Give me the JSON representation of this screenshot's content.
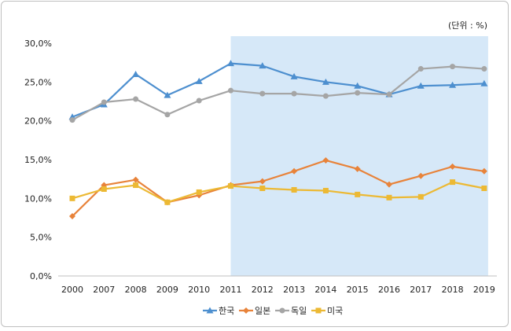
{
  "chart_data": {
    "type": "line",
    "unit_label": "(단위 : %)",
    "categories": [
      "2000",
      "2007",
      "2008",
      "2009",
      "2010",
      "2011",
      "2012",
      "2013",
      "2014",
      "2015",
      "2016",
      "2017",
      "2018",
      "2019"
    ],
    "yticks": [
      "0,0%",
      "5,0%",
      "10,0%",
      "15,0%",
      "20,0%",
      "25,0%",
      "30,0%"
    ],
    "ylim": [
      0,
      30
    ],
    "highlight_range": [
      "2011",
      "2019"
    ],
    "highlight_color": "#d6e8f8",
    "grid": false,
    "legend_position": "bottom",
    "series": [
      {
        "name": "한국",
        "color": "#4d8fcf",
        "marker": "triangle",
        "values": [
          20.5,
          22.1,
          26.0,
          23.3,
          25.1,
          27.4,
          27.1,
          25.7,
          25.0,
          24.5,
          23.4,
          24.5,
          24.6,
          24.8
        ]
      },
      {
        "name": "일본",
        "color": "#e8833a",
        "marker": "diamond",
        "values": [
          7.7,
          11.7,
          12.4,
          9.5,
          10.4,
          11.7,
          12.2,
          13.5,
          14.9,
          13.8,
          11.8,
          12.9,
          14.1,
          13.5
        ]
      },
      {
        "name": "독일",
        "color": "#a5a5a5",
        "marker": "circle",
        "values": [
          20.1,
          22.4,
          22.8,
          20.8,
          22.6,
          23.9,
          23.5,
          23.5,
          23.2,
          23.6,
          23.4,
          26.7,
          27.0,
          26.7
        ]
      },
      {
        "name": "미국",
        "color": "#ecb934",
        "marker": "square",
        "values": [
          10.0,
          11.2,
          11.7,
          9.5,
          10.8,
          11.6,
          11.3,
          11.1,
          11.0,
          10.5,
          10.1,
          10.2,
          12.1,
          11.3
        ]
      }
    ]
  }
}
